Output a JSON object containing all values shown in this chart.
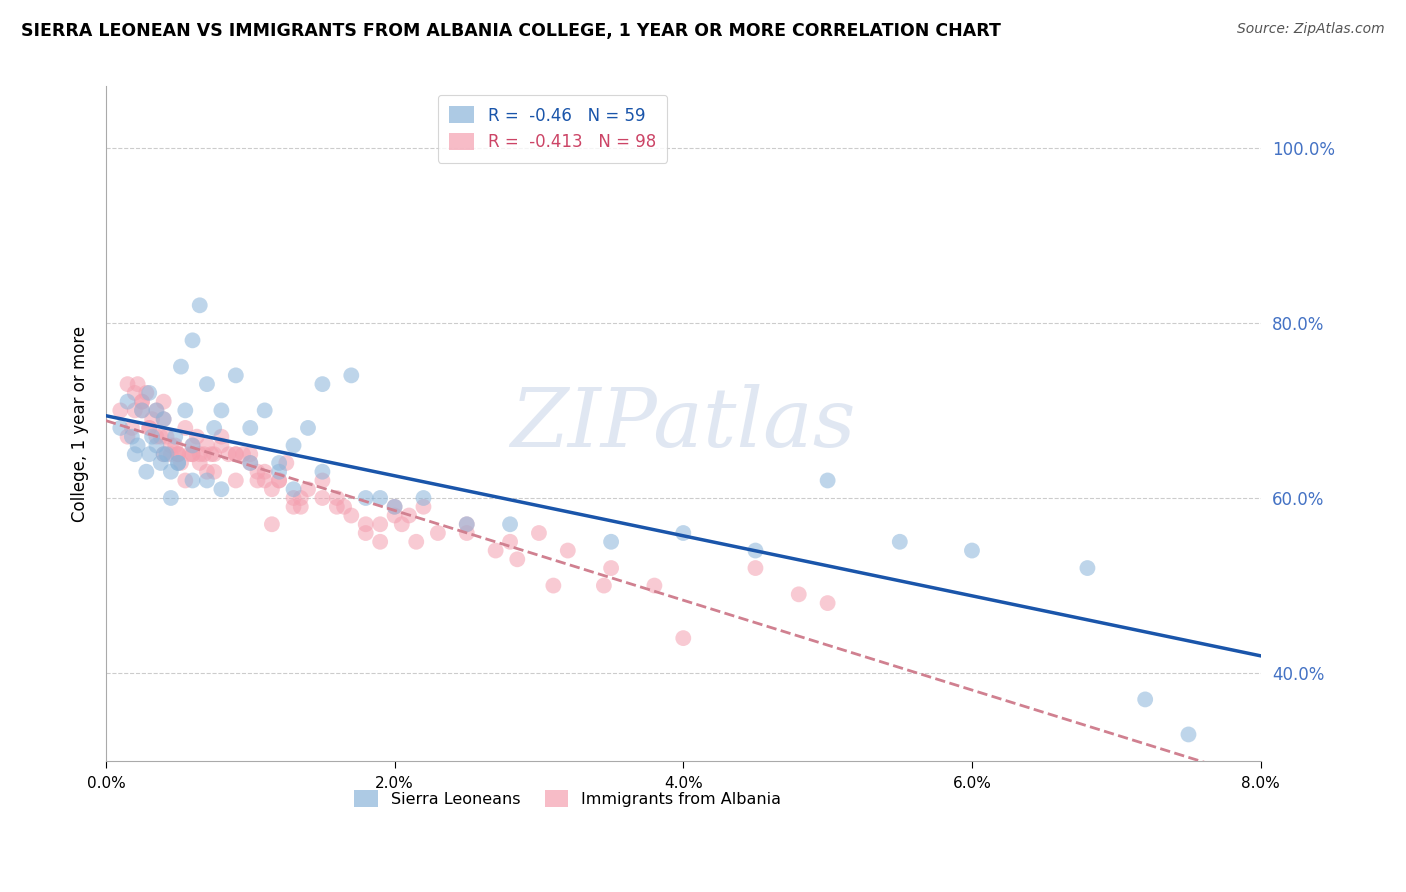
{
  "title": "SIERRA LEONEAN VS IMMIGRANTS FROM ALBANIA COLLEGE, 1 YEAR OR MORE CORRELATION CHART",
  "source": "Source: ZipAtlas.com",
  "ylabel": "College, 1 year or more",
  "watermark": "ZIPatlas",
  "legend_label1": "Sierra Leoneans",
  "legend_label2": "Immigrants from Albania",
  "blue_R": -0.46,
  "blue_N": 59,
  "pink_R": -0.413,
  "pink_N": 98,
  "blue_color": "#8ab4d9",
  "pink_color": "#f4a0b0",
  "blue_line_color": "#1a55aa",
  "pink_line_color": "#d08090",
  "xlim": [
    0.0,
    8.0
  ],
  "ylim": [
    30.0,
    107.0
  ],
  "right_yticks": [
    40.0,
    60.0,
    80.0,
    100.0
  ],
  "blue_scatter_x": [
    0.1,
    0.15,
    0.18,
    0.2,
    0.22,
    0.25,
    0.28,
    0.3,
    0.32,
    0.35,
    0.38,
    0.4,
    0.42,
    0.45,
    0.48,
    0.5,
    0.52,
    0.55,
    0.6,
    0.65,
    0.7,
    0.75,
    0.8,
    0.9,
    1.0,
    1.1,
    1.2,
    1.3,
    1.4,
    1.5,
    1.7,
    1.9,
    2.2,
    2.8,
    3.5,
    4.0,
    4.5,
    5.0,
    5.5,
    6.0,
    6.8,
    7.2,
    0.3,
    0.45,
    0.6,
    0.8,
    1.0,
    1.5,
    2.0,
    2.5,
    1.2,
    0.35,
    0.5,
    0.7,
    1.8,
    0.4,
    1.3,
    7.5,
    0.6
  ],
  "blue_scatter_y": [
    68,
    71,
    67,
    65,
    66,
    70,
    63,
    72,
    67,
    66,
    64,
    69,
    65,
    63,
    67,
    64,
    75,
    70,
    78,
    82,
    73,
    68,
    70,
    74,
    68,
    70,
    64,
    66,
    68,
    73,
    74,
    60,
    60,
    57,
    55,
    56,
    54,
    62,
    55,
    54,
    52,
    37,
    65,
    60,
    62,
    61,
    64,
    63,
    59,
    57,
    63,
    70,
    64,
    62,
    60,
    65,
    61,
    33,
    66
  ],
  "pink_scatter_x": [
    0.1,
    0.15,
    0.18,
    0.2,
    0.22,
    0.25,
    0.28,
    0.3,
    0.32,
    0.35,
    0.38,
    0.4,
    0.42,
    0.45,
    0.48,
    0.5,
    0.52,
    0.55,
    0.58,
    0.6,
    0.63,
    0.65,
    0.68,
    0.7,
    0.73,
    0.75,
    0.8,
    0.85,
    0.9,
    0.95,
    1.0,
    1.05,
    1.1,
    1.15,
    1.2,
    1.25,
    1.3,
    1.35,
    1.4,
    1.5,
    1.6,
    1.7,
    1.8,
    1.9,
    2.0,
    2.1,
    2.2,
    2.5,
    2.8,
    3.0,
    3.2,
    3.5,
    3.8,
    0.3,
    0.5,
    0.7,
    0.9,
    1.0,
    1.2,
    1.5,
    2.0,
    2.5,
    0.4,
    0.6,
    0.8,
    1.1,
    1.3,
    1.6,
    1.9,
    2.3,
    2.7,
    3.1,
    0.25,
    0.45,
    0.65,
    1.05,
    1.35,
    1.65,
    2.05,
    0.35,
    0.55,
    0.75,
    1.15,
    2.15,
    2.85,
    3.45,
    0.9,
    1.8,
    0.15,
    0.6,
    0.4,
    4.0,
    4.5,
    4.8,
    5.0,
    0.25,
    0.2,
    0.5
  ],
  "pink_scatter_y": [
    70,
    73,
    68,
    72,
    73,
    71,
    72,
    68,
    69,
    67,
    67,
    65,
    67,
    65,
    66,
    65,
    64,
    68,
    65,
    65,
    67,
    64,
    65,
    63,
    65,
    65,
    67,
    65,
    62,
    65,
    64,
    63,
    62,
    61,
    62,
    64,
    59,
    59,
    61,
    62,
    60,
    58,
    57,
    55,
    59,
    58,
    59,
    57,
    55,
    56,
    54,
    52,
    50,
    68,
    65,
    66,
    65,
    65,
    62,
    60,
    58,
    56,
    69,
    66,
    66,
    63,
    60,
    59,
    57,
    56,
    54,
    50,
    70,
    66,
    65,
    62,
    60,
    59,
    57,
    70,
    62,
    63,
    57,
    55,
    53,
    50,
    65,
    56,
    67,
    65,
    71,
    44,
    52,
    49,
    48,
    71,
    70,
    65
  ]
}
